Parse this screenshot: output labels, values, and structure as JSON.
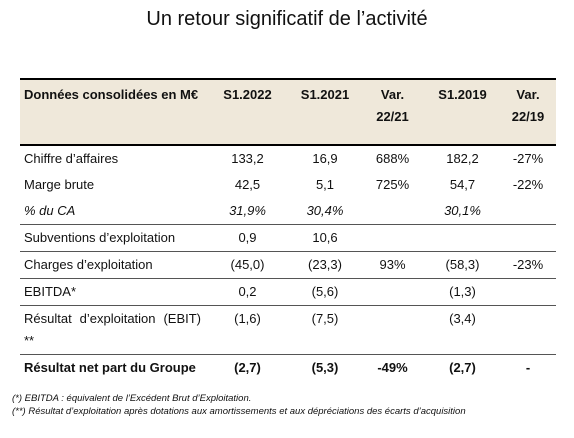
{
  "title": "Un retour significatif de l’activité",
  "table": {
    "header": [
      "Données consolidées en M€",
      "S1.2022",
      "S1.2021",
      "Var. 22/21",
      "S1.2019",
      "Var. 22/19"
    ],
    "rows": [
      [
        "Chiffre d’affaires",
        "133,2",
        "16,9",
        "688%",
        "182,2",
        "-27%"
      ],
      [
        "Marge brute",
        "42,5",
        "5,1",
        "725%",
        "54,7",
        "-22%"
      ],
      [
        "% du CA",
        "31,9%",
        "30,4%",
        null,
        "30,1%",
        null
      ],
      [
        "Subventions d’exploitation",
        "0,9",
        "10,6",
        null,
        null,
        null
      ],
      [
        "Charges d’exploitation",
        "(45,0)",
        "(23,3)",
        "93%",
        "(58,3)",
        "-23%"
      ],
      [
        "EBITDA*",
        "0,2",
        "(5,6)",
        null,
        "(1,3)",
        null
      ],
      [
        "Résultat d’exploitation (EBIT) **",
        "(1,6)",
        "(7,5)",
        null,
        "(3,4)",
        null
      ],
      [
        "Résultat net part du Groupe",
        "(2,7)",
        "(5,3)",
        "-49%",
        "(2,7)",
        "-"
      ]
    ]
  },
  "footnotes": [
    "(*) EBITDA : équivalent de l’Excédent Brut d’Exploitation.",
    "(**) Résultat d’exploitation après dotations aux amortissements et aux dépréciations des écarts d’acquisition"
  ]
}
